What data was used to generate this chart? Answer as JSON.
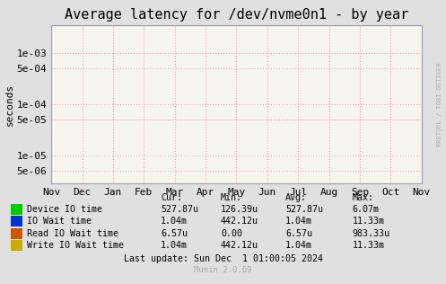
{
  "title": "Average latency for /dev/nvme0n1 - by year",
  "ylabel": "seconds",
  "bg_color": "#e0e0e0",
  "plot_bg_color": "#f5f5ee",
  "grid_color": "#ff9999",
  "border_color": "#9999bb",
  "x_ticks": [
    "Nov",
    "Dec",
    "Jan",
    "Feb",
    "Mar",
    "Apr",
    "May",
    "Jun",
    "Jul",
    "Aug",
    "Sep",
    "Oct",
    "Nov"
  ],
  "y_ticks": [
    5e-06,
    1e-05,
    5e-05,
    0.0001,
    0.0005,
    0.001
  ],
  "ytick_labels": [
    "5e-06",
    "1e-05",
    "5e-05",
    "1e-04",
    "5e-04",
    "1e-03"
  ],
  "ylim_min": 2.8e-06,
  "ylim_max": 0.0035,
  "title_fontsize": 11,
  "axis_label_fontsize": 8,
  "tick_fontsize": 8,
  "watermark": "RRDTOOL / TOBI OETIKER",
  "legend_entries": [
    {
      "label": "Device IO time",
      "color": "#00cc00"
    },
    {
      "label": "IO Wait time",
      "color": "#0033cc"
    },
    {
      "label": "Read IO Wait time",
      "color": "#cc5500"
    },
    {
      "label": "Write IO Wait time",
      "color": "#ccaa00"
    }
  ],
  "table_headers": [
    "Cur:",
    "Min:",
    "Avg:",
    "Max:"
  ],
  "table_data": [
    [
      "527.87u",
      "126.39u",
      "527.87u",
      "6.07m"
    ],
    [
      "1.04m",
      "442.12u",
      "1.04m",
      "11.33m"
    ],
    [
      "6.57u",
      "0.00",
      "6.57u",
      "983.33u"
    ],
    [
      "1.04m",
      "442.12u",
      "1.04m",
      "11.33m"
    ]
  ],
  "last_update": "Last update: Sun Dec  1 01:00:05 2024",
  "munin_version": "Munin 2.0.69"
}
